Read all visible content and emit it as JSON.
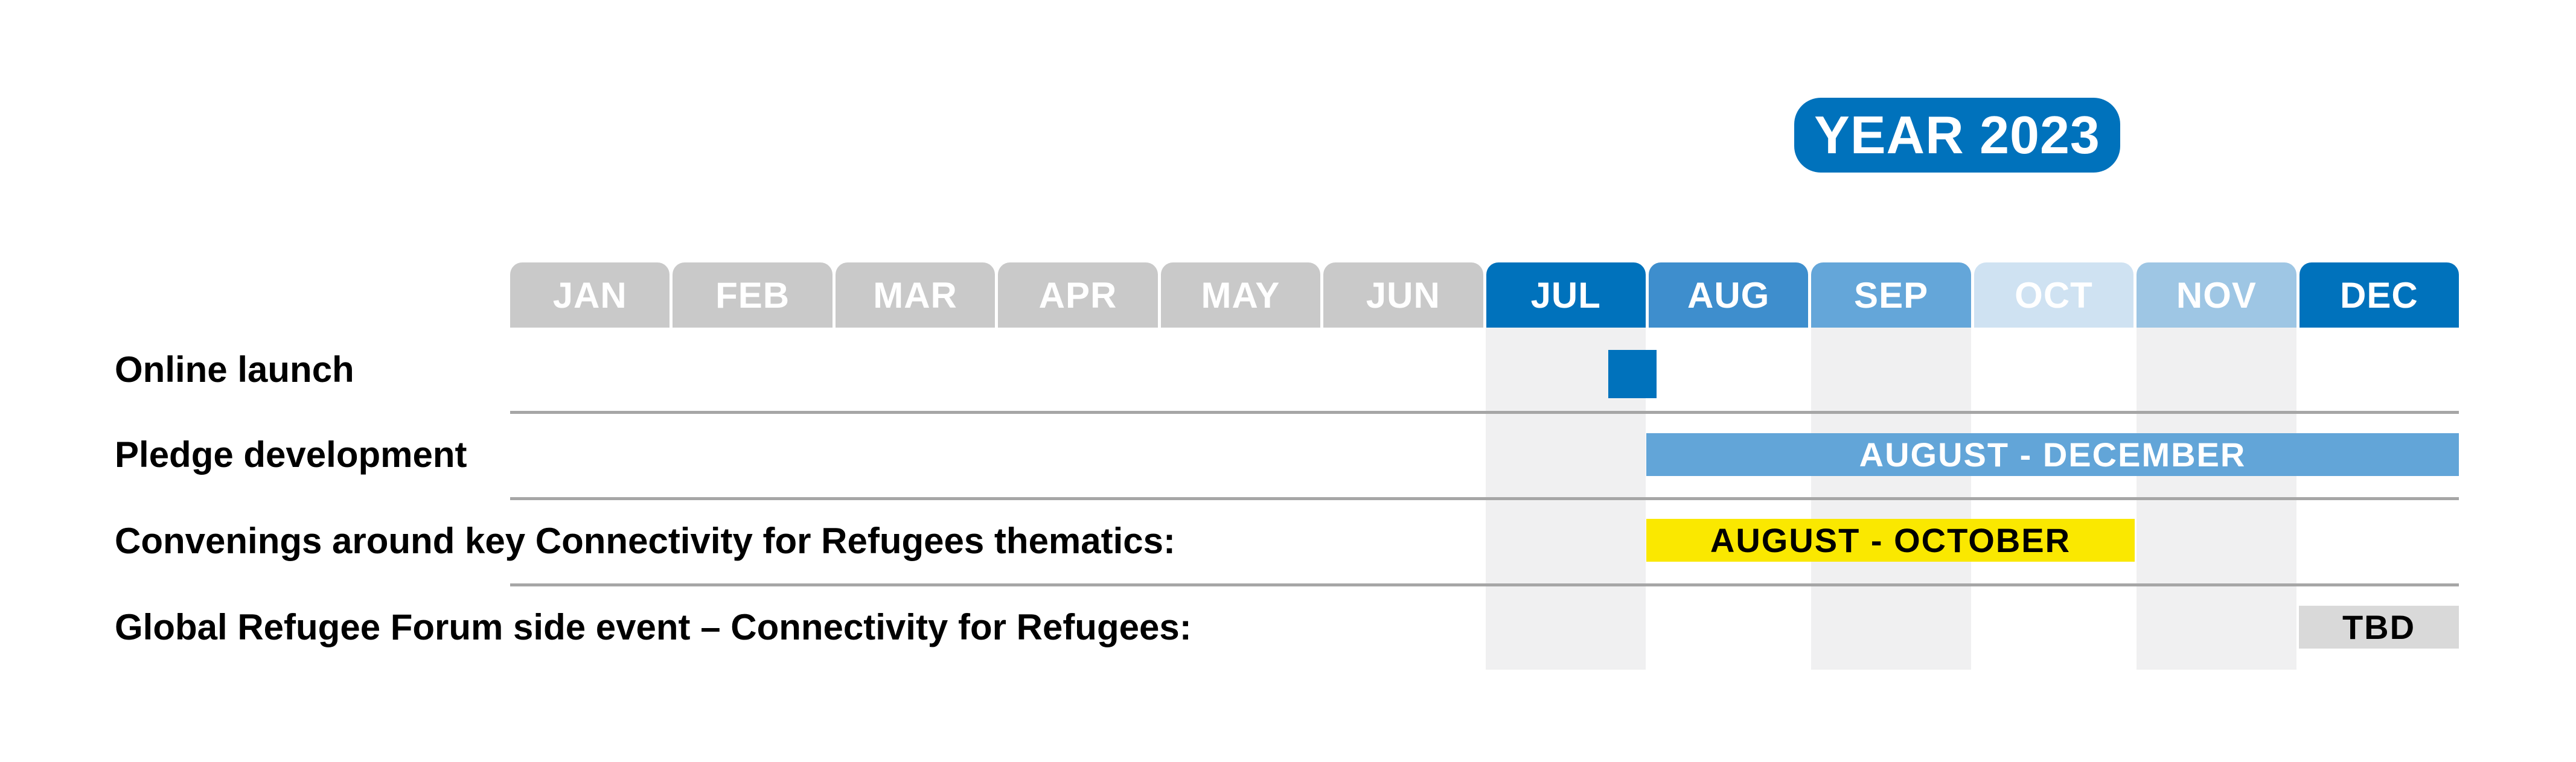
{
  "badge": {
    "label": "YEAR 2023",
    "bg_color": "#0072BC",
    "text_color": "#FFFFFF"
  },
  "months": {
    "text_color": "#FFFFFF",
    "items": [
      {
        "label": "JAN",
        "color": "#C9C9C9"
      },
      {
        "label": "FEB",
        "color": "#C9C9C9"
      },
      {
        "label": "MAR",
        "color": "#C9C9C9"
      },
      {
        "label": "APR",
        "color": "#C9C9C9"
      },
      {
        "label": "MAY",
        "color": "#C9C9C9"
      },
      {
        "label": "JUN",
        "color": "#C9C9C9"
      },
      {
        "label": "JUL",
        "color": "#0072BC"
      },
      {
        "label": "AUG",
        "color": "#3E8ECD"
      },
      {
        "label": "SEP",
        "color": "#64A6D9"
      },
      {
        "label": "OCT",
        "color": "#CFE2F2"
      },
      {
        "label": "NOV",
        "color": "#9EC6E4"
      },
      {
        "label": "DEC",
        "color": "#0072BC"
      }
    ]
  },
  "grid": {
    "stripe_color": "#F0F0F1",
    "striped_months": [
      "JUL",
      "SEP",
      "NOV"
    ],
    "line_color": "#A6A6A6"
  },
  "rows": [
    {
      "label": "Online launch",
      "marker": {
        "shape": "square",
        "color": "#0072BC",
        "position": "end of JUL"
      }
    },
    {
      "label": "Pledge development",
      "bar": {
        "text": "AUGUST - DECEMBER",
        "color": "#62A5D8",
        "text_color": "#FFFFFF",
        "start": "AUG",
        "end": "DEC"
      }
    },
    {
      "label": "Convenings around key Connectivity for Refugees thematics:",
      "bar": {
        "text": "AUGUST - OCTOBER",
        "color": "#FAE800",
        "text_color": "#000000",
        "start": "AUG",
        "end": "OCT"
      }
    },
    {
      "label": "Global Refugee Forum side event – Connectivity for Refugees:",
      "bar": {
        "text": "TBD",
        "color": "#D9D9D9",
        "text_color": "#000000",
        "start": "DEC",
        "end": "DEC"
      }
    }
  ],
  "chart_data": {
    "type": "gantt",
    "title": "YEAR 2023",
    "categories": [
      "JAN",
      "FEB",
      "MAR",
      "APR",
      "MAY",
      "JUN",
      "JUL",
      "AUG",
      "SEP",
      "OCT",
      "NOV",
      "DEC"
    ],
    "legend_position": "none",
    "grid": "striped columns under JUL, SEP, NOV; horizontal separator lines between rows",
    "tasks": [
      {
        "name": "Online launch",
        "type": "milestone",
        "month": "JUL",
        "position_in_month": 1.0,
        "label": "",
        "color": "#0072BC"
      },
      {
        "name": "Pledge development",
        "type": "bar",
        "start_month": "AUG",
        "end_month": "DEC",
        "label": "AUGUST - DECEMBER",
        "color": "#62A5D8"
      },
      {
        "name": "Convenings around key Connectivity for Refugees thematics:",
        "type": "bar",
        "start_month": "AUG",
        "end_month": "OCT",
        "label": "AUGUST - OCTOBER",
        "color": "#FAE800"
      },
      {
        "name": "Global Refugee Forum side event – Connectivity for Refugees:",
        "type": "bar",
        "start_month": "DEC",
        "end_month": "DEC",
        "label": "TBD",
        "color": "#D9D9D9"
      }
    ],
    "month_header_colors": {
      "JAN": "#C9C9C9",
      "FEB": "#C9C9C9",
      "MAR": "#C9C9C9",
      "APR": "#C9C9C9",
      "MAY": "#C9C9C9",
      "JUN": "#C9C9C9",
      "JUL": "#0072BC",
      "AUG": "#3E8ECD",
      "SEP": "#64A6D9",
      "OCT": "#CFE2F2",
      "NOV": "#9EC6E4",
      "DEC": "#0072BC"
    }
  }
}
